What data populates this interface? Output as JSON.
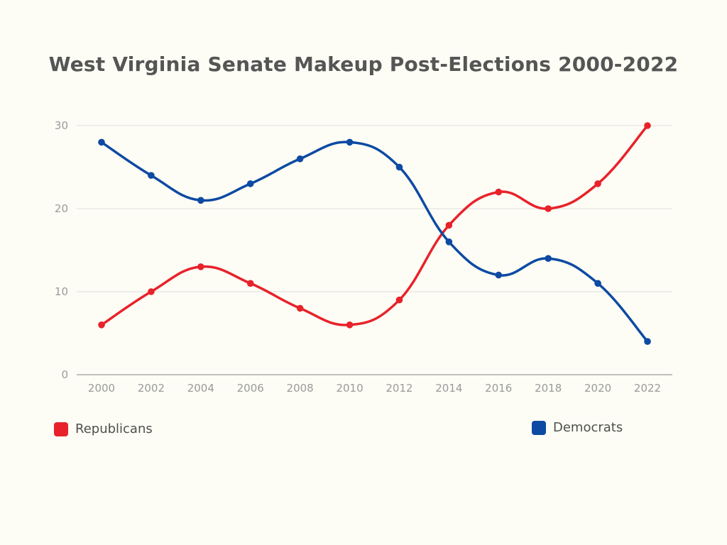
{
  "chart_data": {
    "type": "line",
    "title": "West Virginia Senate Makeup Post-Elections 2000-2022",
    "xlabel": "",
    "ylabel": "",
    "categories": [
      "2000",
      "2002",
      "2004",
      "2006",
      "2008",
      "2010",
      "2012",
      "2014",
      "2016",
      "2018",
      "2020",
      "2022"
    ],
    "yticks": [
      "0",
      "10",
      "20",
      "30"
    ],
    "ylim": [
      0,
      30
    ],
    "grid": true,
    "legend_position": "bottom",
    "series": [
      {
        "name": "Republicans",
        "color": "#e8222a",
        "values": [
          6,
          10,
          13,
          11,
          8,
          6,
          9,
          18,
          22,
          20,
          23,
          30
        ]
      },
      {
        "name": "Democrats",
        "color": "#0d4aa3",
        "values": [
          28,
          24,
          21,
          23,
          26,
          28,
          25,
          16,
          12,
          14,
          11,
          4
        ]
      }
    ]
  }
}
